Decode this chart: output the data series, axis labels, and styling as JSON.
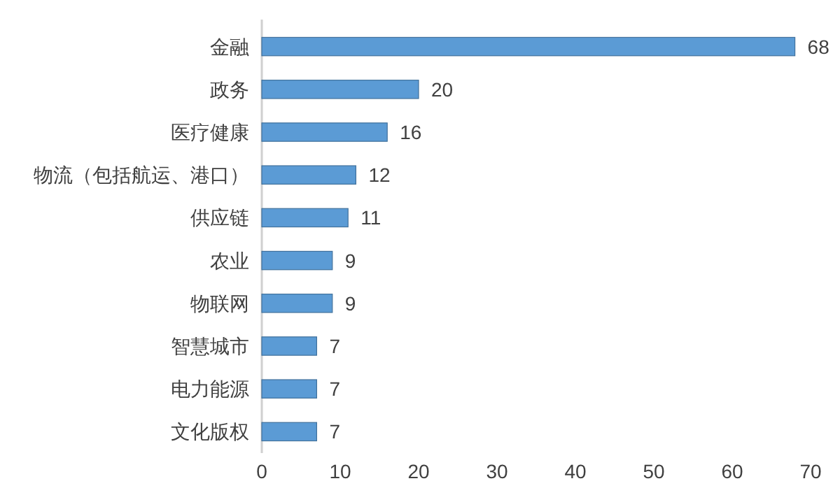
{
  "chart_data": {
    "type": "bar",
    "orientation": "horizontal",
    "categories": [
      "金融",
      "政务",
      "医疗健康",
      "物流（包括航运、港口）",
      "供应链",
      "农业",
      "物联网",
      "智慧城市",
      "电力能源",
      "文化版权"
    ],
    "values": [
      68,
      20,
      16,
      12,
      11,
      9,
      9,
      7,
      7,
      7
    ],
    "color": "#5b9bd5",
    "xlim": [
      0,
      70
    ],
    "xticks": [
      0,
      10,
      20,
      30,
      40,
      50,
      60,
      70
    ],
    "data_labels": true,
    "grid": false
  }
}
